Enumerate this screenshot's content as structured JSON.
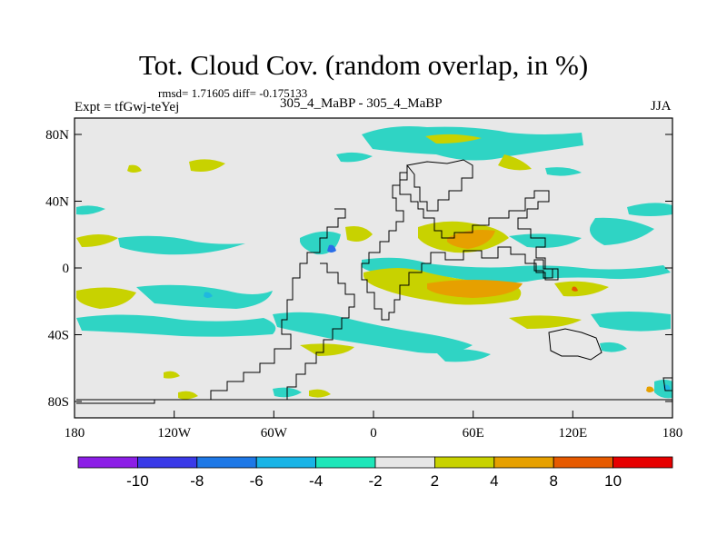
{
  "title": "Tot. Cloud Cov. (random overlap, in %)",
  "stats": "rmsd= 1.71605 diff= -0.175133",
  "experiment": "Expt = tfGwj-teYej",
  "cases": "305_4_MaBP - 305_4_MaBP",
  "season": "JJA",
  "x_ticks": [
    "180",
    "120W",
    "60W",
    "0",
    "60E",
    "120E",
    "180"
  ],
  "y_ticks": [
    "80N",
    "40N",
    "0",
    "40S",
    "80S"
  ],
  "colorbar": {
    "colors": [
      "#8c1ee6",
      "#3a3ae8",
      "#1e78e6",
      "#19b4e6",
      "#1ee6b9",
      "#e6e6e6",
      "#c8d200",
      "#e6a000",
      "#e65a00",
      "#e60000"
    ],
    "labels": [
      "-10",
      "-8",
      "-6",
      "-4",
      "-2",
      "2",
      "4",
      "8",
      "10"
    ]
  },
  "map_colors": {
    "neutral": "#e8e8e8",
    "neg_light": "#2fd4c4",
    "neg_mid": "#1fb8e0",
    "neg_dark": "#2a6ee8",
    "pos_light": "#c8d200",
    "pos_mid": "#e6a000",
    "pos_dark": "#e65a00"
  }
}
